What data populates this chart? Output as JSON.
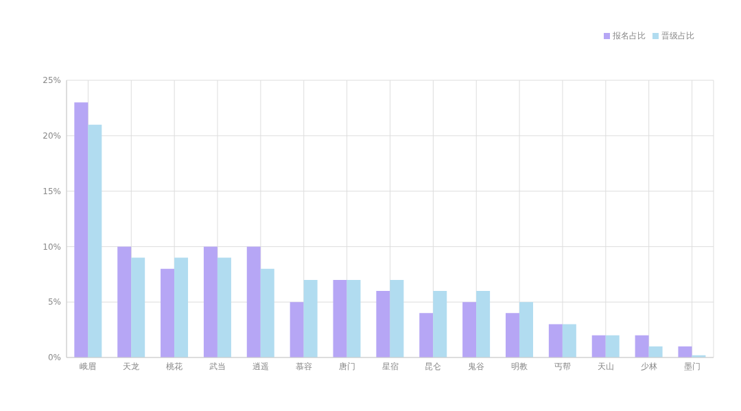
{
  "chart_data": {
    "type": "bar",
    "categories": [
      "峨眉",
      "天龙",
      "桃花",
      "武当",
      "逍遥",
      "慕容",
      "唐门",
      "星宿",
      "昆仑",
      "鬼谷",
      "明教",
      "丐帮",
      "天山",
      "少林",
      "墨门"
    ],
    "series": [
      {
        "name": "报名占比",
        "color": "#b6a6f5",
        "values": [
          23,
          10,
          8,
          10,
          10,
          5,
          7,
          6,
          4,
          5,
          4,
          3,
          2,
          2,
          1
        ]
      },
      {
        "name": "晋级占比",
        "color": "#b1dcf0",
        "values": [
          21,
          9,
          9,
          9,
          8,
          7,
          7,
          7,
          6,
          6,
          5,
          3,
          2,
          1,
          0.2
        ]
      }
    ],
    "ylim": [
      0,
      25
    ],
    "yticks": [
      {
        "value": 0,
        "label": "0%"
      },
      {
        "value": 5,
        "label": "5%"
      },
      {
        "value": 10,
        "label": "10%"
      },
      {
        "value": 15,
        "label": "15%"
      },
      {
        "value": 20,
        "label": "20%"
      },
      {
        "value": 25,
        "label": "25%"
      }
    ],
    "grid": true,
    "legend": "top right"
  }
}
